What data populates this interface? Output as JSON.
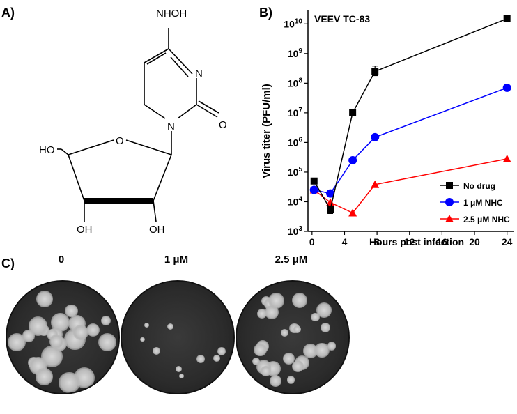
{
  "panels": {
    "a": {
      "label": "A)"
    },
    "b": {
      "label": "B)"
    },
    "c": {
      "label": "C)"
    }
  },
  "structure": {
    "labels": {
      "nhoh": "NHOH",
      "n_ring": "N",
      "n_glyco": "N",
      "o_carbonyl": "O",
      "o_ring": "O",
      "ho": "HO",
      "oh_left": "OH",
      "oh_right": "OH"
    }
  },
  "chart_data": {
    "type": "line",
    "title": "VEEV TC-83",
    "xlabel": "Hours post infection",
    "ylabel": "Virus titer (PFU/ml)",
    "yscale": "log",
    "xlim": [
      -0.5,
      24.8
    ],
    "ylim": [
      1000,
      30000000000
    ],
    "xticks": [
      0,
      4,
      8,
      12,
      16,
      20,
      24
    ],
    "yticks": [
      {
        "value": 1000,
        "base": "10",
        "exp": "3"
      },
      {
        "value": 10000,
        "base": "10",
        "exp": "4"
      },
      {
        "value": 100000,
        "base": "10",
        "exp": "5"
      },
      {
        "value": 1000000,
        "base": "10",
        "exp": "6"
      },
      {
        "value": 10000000,
        "base": "10",
        "exp": "7"
      },
      {
        "value": 100000000,
        "base": "10",
        "exp": "8"
      },
      {
        "value": 1000000000,
        "base": "10",
        "exp": "9"
      },
      {
        "value": 10000000000,
        "base": "10",
        "exp": "10"
      }
    ],
    "legend_position": "bottom-right",
    "series": [
      {
        "name": "No drug",
        "color": "#000000",
        "marker": "square",
        "x": [
          0.25,
          2.25,
          5,
          7.75,
          24
        ],
        "y": [
          50000,
          5500,
          10000000,
          250000000,
          15000000000
        ],
        "err": [
          null,
          [
            4000,
            7000
          ],
          null,
          [
            180000000,
            380000000
          ],
          null
        ]
      },
      {
        "name": "1 μM NHC",
        "color": "#0000ff",
        "marker": "circle",
        "x": [
          0.25,
          2.25,
          5,
          7.75,
          24
        ],
        "y": [
          25000,
          19000,
          250000,
          1500000,
          70000000
        ],
        "err": [
          null,
          null,
          null,
          null,
          null
        ]
      },
      {
        "name": "2.5 μM NHC",
        "color": "#ff0000",
        "marker": "triangle",
        "x": [
          0.25,
          2.25,
          5,
          7.75,
          24
        ],
        "y": [
          25000,
          9500,
          4200,
          38000,
          280000
        ],
        "err": [
          null,
          null,
          null,
          null,
          null
        ]
      }
    ]
  },
  "plates": [
    {
      "label": "0"
    },
    {
      "label": "1 μM"
    },
    {
      "label": "2.5 μM"
    }
  ]
}
